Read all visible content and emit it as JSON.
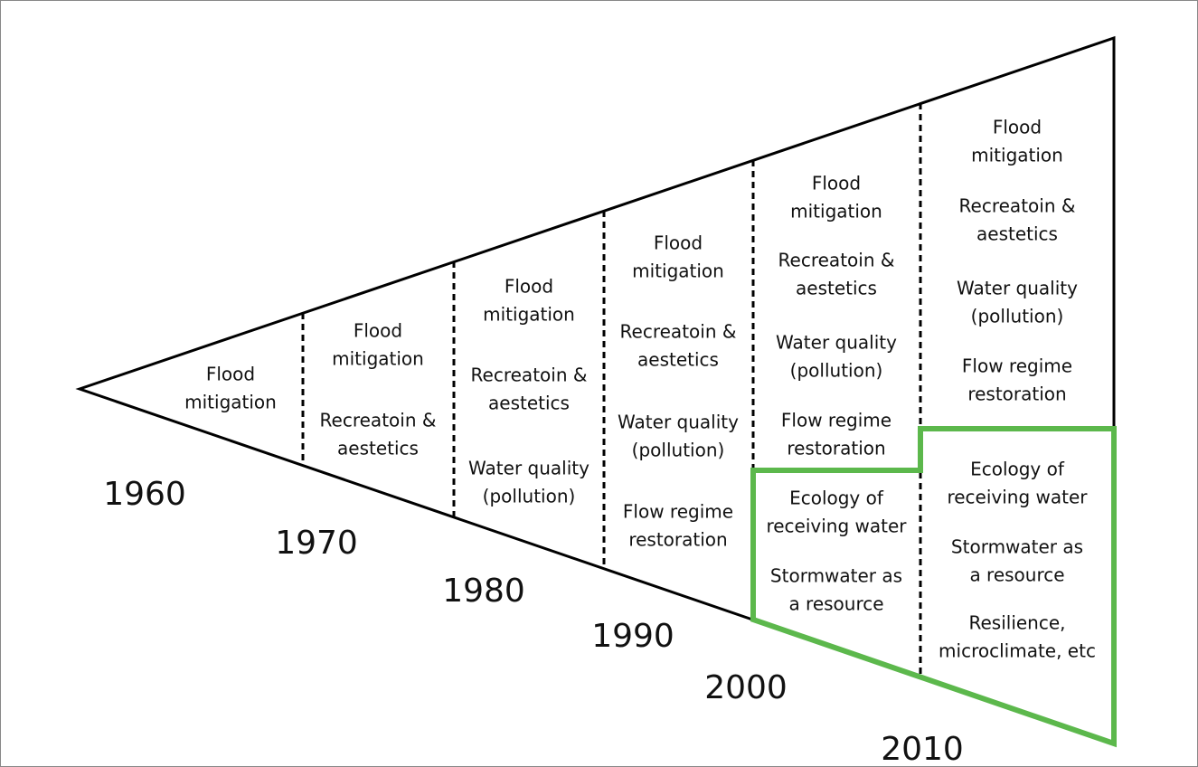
{
  "columns": [
    {
      "decade": "1960",
      "items": [
        [
          "Flood",
          "mitigation"
        ]
      ]
    },
    {
      "decade": "1970",
      "items": [
        [
          "Flood",
          "mitigation"
        ],
        [
          "Recreatoin &",
          "aestetics"
        ]
      ]
    },
    {
      "decade": "1980",
      "items": [
        [
          "Flood",
          "mitigation"
        ],
        [
          "Recreatoin &",
          "aestetics"
        ],
        [
          "Water quality",
          "(pollution)"
        ]
      ]
    },
    {
      "decade": "1990",
      "items": [
        [
          "Flood",
          "mitigation"
        ],
        [
          "Recreatoin &",
          "aestetics"
        ],
        [
          "Water quality",
          "(pollution)"
        ],
        [
          "Flow regime",
          "restoration"
        ]
      ]
    },
    {
      "decade": "2000",
      "items": [
        [
          "Flood",
          "mitigation"
        ],
        [
          "Recreatoin &",
          "aestetics"
        ],
        [
          "Water quality",
          "(pollution)"
        ],
        [
          "Flow regime",
          "restoration"
        ],
        [
          "Ecology of",
          "receiving water"
        ],
        [
          "Stormwater as",
          "a resource"
        ]
      ]
    },
    {
      "decade": "2010",
      "items": [
        [
          "Flood",
          "mitigation"
        ],
        [
          "Recreatoin &",
          "aestetics"
        ],
        [
          "Water quality",
          "(pollution)"
        ],
        [
          "Flow regime",
          "restoration"
        ],
        [
          "Ecology of",
          "receiving water"
        ],
        [
          "Stormwater as",
          "a resource"
        ],
        [
          "Resilience,",
          "microclimate, etc"
        ]
      ]
    }
  ]
}
